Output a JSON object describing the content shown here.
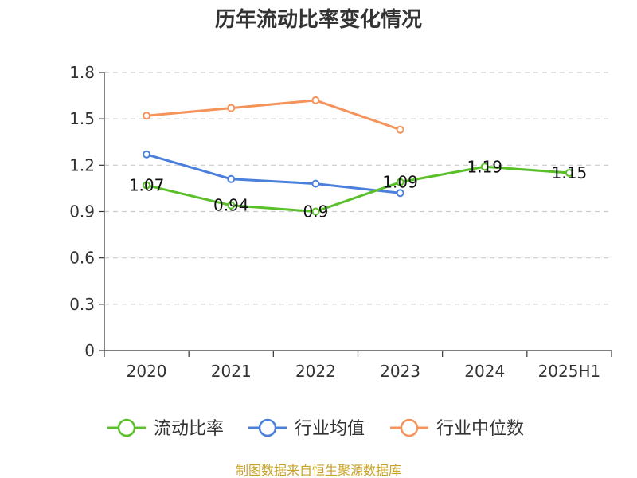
{
  "chart_data": {
    "type": "line",
    "title": "历年流动比率变化情况",
    "categories": [
      "2020",
      "2021",
      "2022",
      "2023",
      "2024",
      "2025H1"
    ],
    "y_ticks": [
      "0",
      "0.3",
      "0.6",
      "0.9",
      "1.2",
      "1.5",
      "1.8"
    ],
    "ylim": [
      0,
      1.8
    ],
    "grid": true,
    "legend_position": "bottom",
    "series": [
      {
        "name": "流动比率",
        "color": "#5ac02a",
        "values": [
          1.07,
          0.94,
          0.9,
          1.09,
          1.19,
          1.15
        ],
        "labels": [
          "1.07",
          "0.94",
          "0.9",
          "1.09",
          "1.19",
          "1.15"
        ]
      },
      {
        "name": "行业均值",
        "color": "#4a7fdc",
        "values": [
          1.27,
          1.11,
          1.08,
          1.02,
          null,
          null
        ]
      },
      {
        "name": "行业中位数",
        "color": "#f5935a",
        "values": [
          1.52,
          1.57,
          1.62,
          1.43,
          null,
          null
        ]
      }
    ],
    "source": "制图数据来自恒生聚源数据库"
  }
}
